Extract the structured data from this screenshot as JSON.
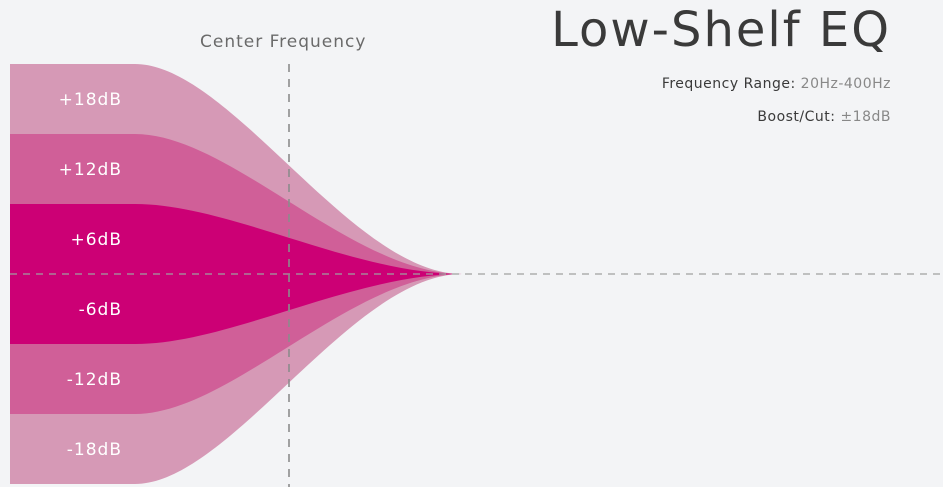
{
  "header": {
    "title": "Low-Shelf EQ",
    "center_frequency_label": "Center Frequency"
  },
  "specs": [
    {
      "label": "Frequency Range:",
      "value": "20Hz-400Hz"
    },
    {
      "label": "Boost/Cut:",
      "value": "±18dB"
    }
  ],
  "bands": [
    {
      "label": "+18dB",
      "gain_db": 18
    },
    {
      "label": "+12dB",
      "gain_db": 12
    },
    {
      "label": "+6dB",
      "gain_db": 6
    },
    {
      "label": "-6dB",
      "gain_db": -6
    },
    {
      "label": "-12dB",
      "gain_db": -12
    },
    {
      "label": "-18dB",
      "gain_db": -18
    }
  ],
  "colors": {
    "background": "#f3f4f6",
    "band_18": "#d699b6",
    "band_12": "#d05f98",
    "band_6": "#cc0075",
    "guide_line": "#9a9a9a",
    "text": "#3a3a3a"
  }
}
